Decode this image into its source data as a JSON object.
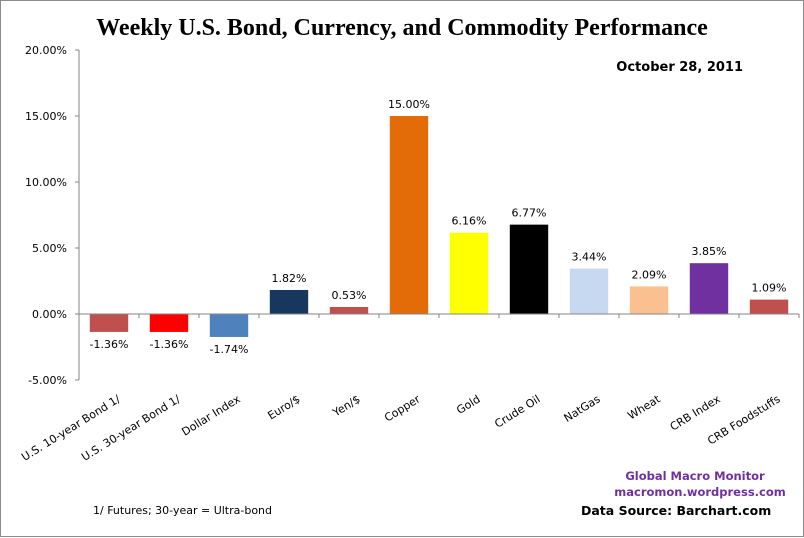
{
  "chart_data": {
    "type": "bar",
    "title": "Weekly U.S. Bond, Currency, and Commodity Performance",
    "subtitle": "October 28, 2011",
    "xlabel": "",
    "ylabel": "",
    "ylim": [
      -5,
      20
    ],
    "yticks": [
      -5,
      0,
      5,
      10,
      15,
      20
    ],
    "ytick_labels": [
      "-5.00%",
      "0.00%",
      "5.00%",
      "10.00%",
      "15.00%",
      "20.00%"
    ],
    "grid": false,
    "legend": "none",
    "categories": [
      "U.S. 10-year Bond 1/",
      "U.S. 30-year Bond 1/",
      "Dollar Index",
      "Euro/$",
      "Yen/$",
      "Copper",
      "Gold",
      "Crude Oil",
      "NatGas",
      "Wheat",
      "CRB Index",
      "CRB Foodstuffs"
    ],
    "values": [
      -1.36,
      -1.36,
      -1.74,
      1.82,
      0.53,
      15.0,
      6.16,
      6.77,
      3.44,
      2.09,
      3.85,
      1.09
    ],
    "data_labels": [
      "-1.36%",
      "-1.36%",
      "-1.74%",
      "1.82%",
      "0.53%",
      "15.00%",
      "6.16%",
      "6.77%",
      "3.44%",
      "2.09%",
      "3.85%",
      "1.09%"
    ],
    "colors": [
      "#c0504d",
      "#ff0000",
      "#4f81bd",
      "#17375e",
      "#c0504d",
      "#e36c09",
      "#ffff00",
      "#000000",
      "#c6d9f1",
      "#fac090",
      "#7030a0",
      "#c0504d"
    ],
    "annotations": {
      "footnote": "1/  Futures; 30-year = Ultra-bond",
      "brand_line1": "Global Macro Monitor",
      "brand_line2": "macromon.wordpress.com",
      "source": "Data Source:  Barchart.com"
    }
  }
}
